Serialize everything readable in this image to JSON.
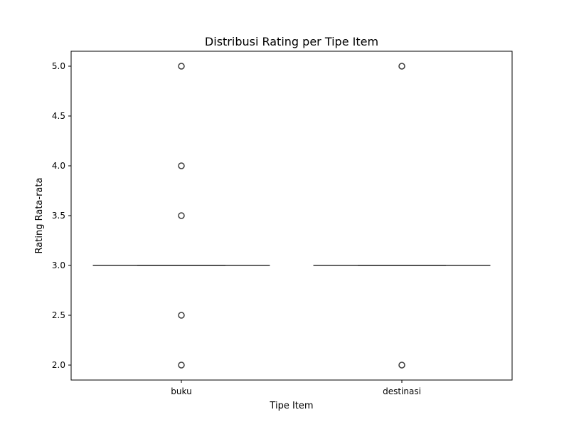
{
  "chart_data": {
    "type": "box",
    "title": "Distribusi Rating per Tipe Item",
    "xlabel": "Tipe Item",
    "ylabel": "Rating Rata-rata",
    "categories": [
      "buku",
      "destinasi"
    ],
    "ylim": [
      1.85,
      5.15
    ],
    "yticks": [
      2.0,
      2.5,
      3.0,
      3.5,
      4.0,
      4.5,
      5.0
    ],
    "ytick_labels": [
      "2.0",
      "2.5",
      "3.0",
      "3.5",
      "4.0",
      "4.5",
      "5.0"
    ],
    "grid": false,
    "boxes": [
      {
        "category": "buku",
        "q1": 3.0,
        "median": 3.0,
        "q3": 3.0,
        "whisker_low": 3.0,
        "whisker_high": 3.0,
        "outliers": [
          5.0,
          4.0,
          3.5,
          2.5,
          2.0
        ]
      },
      {
        "category": "destinasi",
        "q1": 3.0,
        "median": 3.0,
        "q3": 3.0,
        "whisker_low": 3.0,
        "whisker_high": 3.0,
        "outliers": [
          5.0,
          2.0
        ]
      }
    ],
    "colors": {
      "box_line": "#3d3d3d",
      "outlier_edge": "#3d3d3d",
      "axes": "#000000"
    }
  }
}
